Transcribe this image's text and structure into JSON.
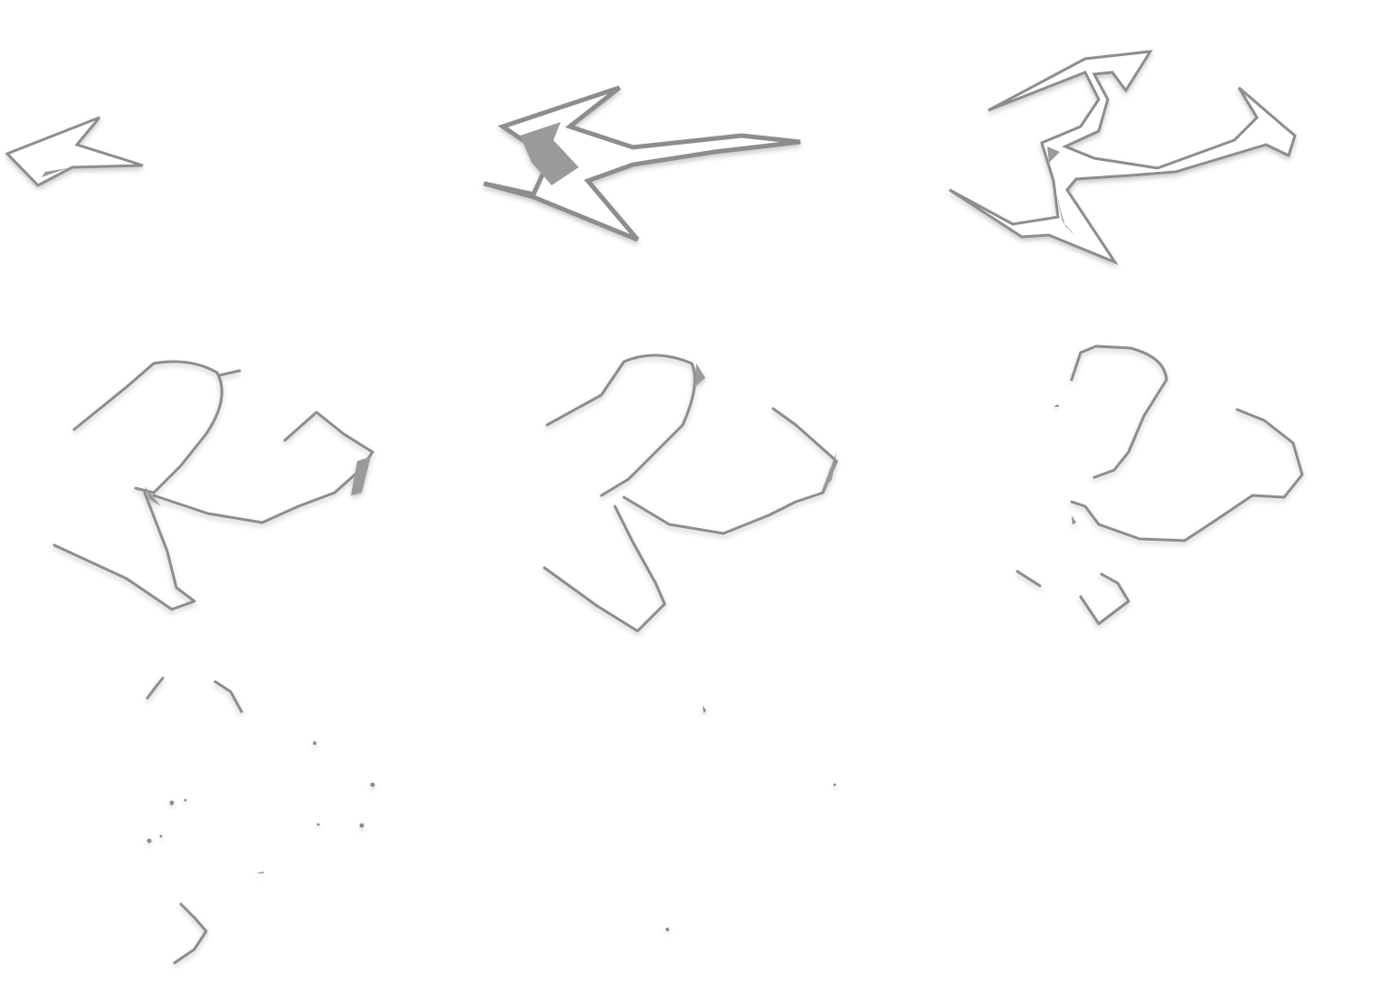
{
  "sprite_sheet": {
    "background": "#ffffff",
    "stroke_color": "#8d8d8d",
    "fill_color": "#ffffff",
    "shade_color": "#9a9a9a",
    "frame_count": 9,
    "frame_icons": [
      "arrow-small-icon",
      "arrow-large-icon",
      "arrow-curling-icon",
      "curl-shape-icon",
      "curl-shape-breaking-icon",
      "curl-shape-fragmenting-icon",
      "curl-scatter-icon",
      "curl-remnant-icon",
      "empty-frame"
    ]
  }
}
